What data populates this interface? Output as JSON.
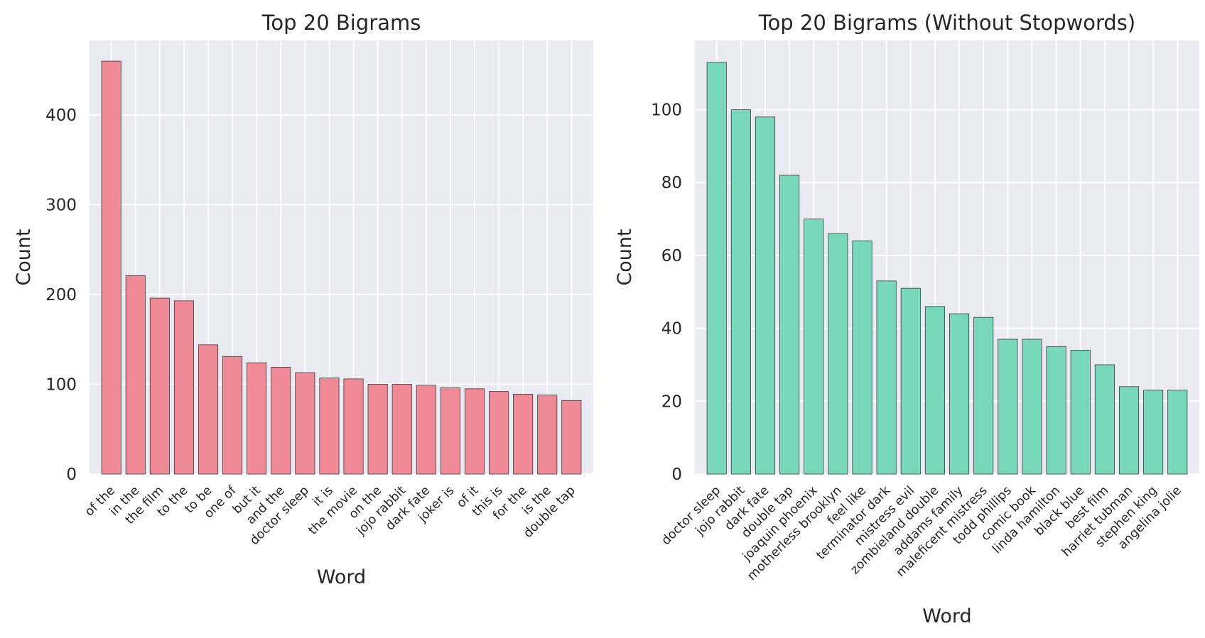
{
  "colors": {
    "left": "#f08a96",
    "right": "#78d8ba",
    "background": "#eaeaf2",
    "grid": "#ffffff"
  },
  "chart_data": [
    {
      "type": "bar",
      "title": "Top 20 Bigrams",
      "xlabel": "Word",
      "ylabel": "Count",
      "ylim": [
        0,
        483
      ],
      "yticks": [
        0,
        100,
        200,
        300,
        400
      ],
      "grid": true,
      "categories": [
        "of the",
        "in the",
        "the film",
        "to the",
        "to be",
        "one of",
        "but it",
        "and the",
        "doctor sleep",
        "it is",
        "the movie",
        "on the",
        "jojo rabbit",
        "dark fate",
        "joker is",
        "of it",
        "this is",
        "for the",
        "is the",
        "double tap"
      ],
      "values": [
        460,
        221,
        196,
        193,
        144,
        131,
        124,
        119,
        113,
        107,
        106,
        100,
        100,
        99,
        96,
        95,
        92,
        89,
        88,
        82
      ]
    },
    {
      "type": "bar",
      "title": "Top 20 Bigrams (Without Stopwords)",
      "xlabel": "Word",
      "ylabel": "Count",
      "ylim": [
        0,
        119
      ],
      "yticks": [
        0,
        20,
        40,
        60,
        80,
        100
      ],
      "grid": true,
      "categories": [
        "doctor sleep",
        "jojo rabbit",
        "dark fate",
        "double tap",
        "joaquin phoenix",
        "motherless brooklyn",
        "feel like",
        "terminator dark",
        "mistress evil",
        "zombieland double",
        "addams family",
        "maleficent mistress",
        "todd phillips",
        "comic book",
        "linda hamilton",
        "black blue",
        "best film",
        "harriet tubman",
        "stephen king",
        "angelina jolie"
      ],
      "values": [
        113,
        100,
        98,
        82,
        70,
        66,
        64,
        53,
        51,
        46,
        44,
        43,
        37,
        37,
        35,
        34,
        30,
        24,
        23,
        23
      ]
    }
  ]
}
